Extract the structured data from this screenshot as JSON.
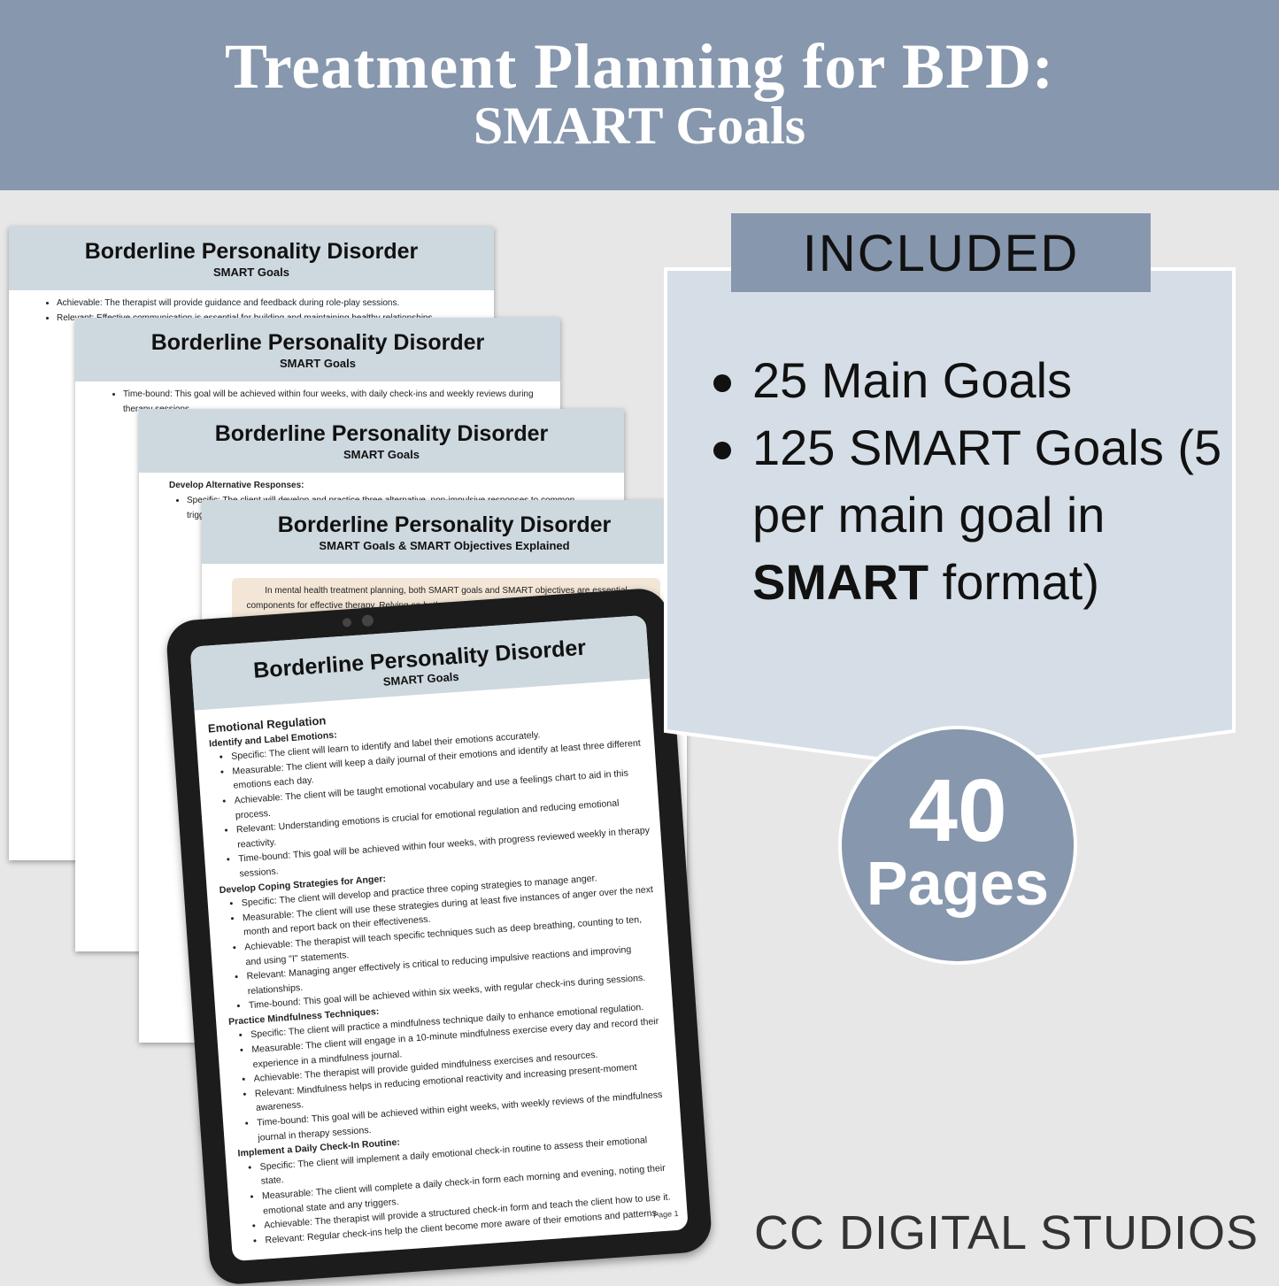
{
  "header": {
    "title": "Treatment Planning for BPD:",
    "subtitle": "SMART Goals"
  },
  "pages": [
    {
      "title": "Borderline Personality Disorder",
      "subtitle": "SMART Goals",
      "blocks": [
        {
          "items": [
            "Achievable: The therapist will provide guidance and feedback during role-play sessions.",
            "Relevant: Effective communication is essential for building and maintaining healthy relationships."
          ]
        }
      ]
    },
    {
      "title": "Borderline Personality Disorder",
      "subtitle": "SMART Goals",
      "blocks": [
        {
          "items": [
            "Time-bound: This goal will be achieved within four weeks, with daily check-ins and weekly reviews during therapy sessions."
          ]
        }
      ]
    },
    {
      "title": "Borderline Personality Disorder",
      "subtitle": "SMART Goals",
      "blocks": [
        {
          "heading": "Develop Alternative Responses:",
          "items": [
            "Specific: The client will develop and practice three alternative, non-impulsive responses to common triggers."
          ]
        }
      ]
    },
    {
      "title": "Borderline Personality Disorder",
      "subtitle": "SMART Goals & SMART Objectives Explained",
      "intro": "In mental health treatment planning, both SMART goals and SMART objectives are essential components for effective therapy.  Relying on both you can create comprehensive plans that are client-centered, measurable, and"
    }
  ],
  "tablet": {
    "title": "Borderline Personality Disorder",
    "subtitle": "SMART Goals",
    "section": "Emotional Regulation",
    "groups": [
      {
        "heading": "Identify and Label Emotions:",
        "items": [
          "Specific: The client will learn to identify and label their emotions accurately.",
          "Measurable: The client will keep a daily journal of their emotions and identify at least three different emotions each day.",
          "Achievable: The client will be taught emotional vocabulary and use a feelings chart to aid in this process.",
          "Relevant: Understanding emotions is crucial for emotional regulation and reducing emotional reactivity.",
          "Time-bound: This goal will be achieved within four weeks, with progress reviewed weekly in therapy sessions."
        ]
      },
      {
        "heading": "Develop Coping Strategies for Anger:",
        "items": [
          "Specific: The client will develop and practice three coping strategies to manage anger.",
          "Measurable: The client will use these strategies during at least five instances of anger over the next month and report back on their effectiveness.",
          "Achievable: The therapist will teach specific techniques such as deep breathing, counting to ten, and using \"I\" statements.",
          "Relevant: Managing anger effectively is critical to reducing impulsive reactions and improving relationships.",
          "Time-bound: This goal will be achieved within six weeks, with regular check-ins during sessions."
        ]
      },
      {
        "heading": "Practice Mindfulness Techniques:",
        "items": [
          "Specific: The client will practice a mindfulness technique daily to enhance emotional regulation.",
          "Measurable: The client will engage in a 10-minute mindfulness exercise every day and record their experience in a mindfulness journal.",
          "Achievable: The therapist will provide guided mindfulness exercises and resources.",
          "Relevant: Mindfulness helps in reducing emotional reactivity and increasing present-moment awareness.",
          "Time-bound: This goal will be achieved within eight weeks, with weekly reviews of the mindfulness journal in therapy sessions."
        ]
      },
      {
        "heading": "Implement a Daily Check-In Routine:",
        "items": [
          "Specific: The client will implement a daily emotional check-in routine to assess their emotional state.",
          "Measurable: The client will complete a daily check-in form each morning and evening, noting their emotional state and any triggers.",
          "Achievable: The therapist will provide a structured check-in form and teach the client how to use it.",
          "Relevant: Regular check-ins help the client become more aware of their emotions and patterns."
        ]
      }
    ],
    "page_number": "Page 1"
  },
  "included": {
    "label": "INCLUDED",
    "items": [
      [
        "25 Main Goals"
      ],
      [
        "125 SMART Goals (5 per main goal in ",
        {
          "bold": "SMART"
        },
        " format)"
      ]
    ]
  },
  "badge": {
    "number": "40",
    "label": "Pages"
  },
  "footer": "CC DIGITAL STUDIOS"
}
